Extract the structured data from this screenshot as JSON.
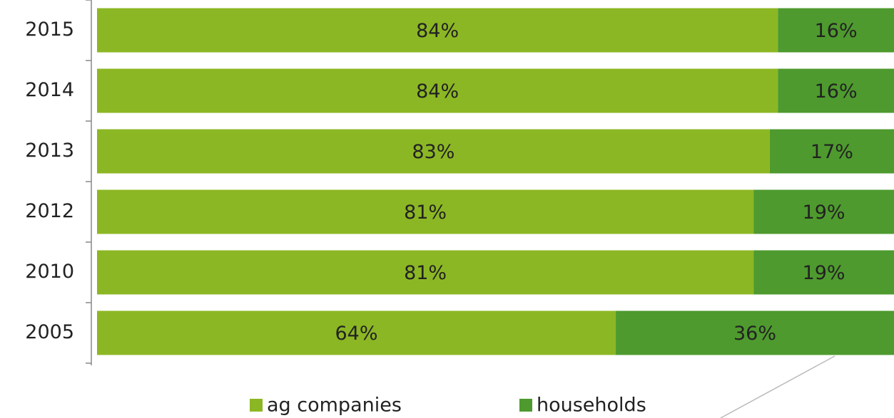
{
  "chart_data": {
    "type": "bar",
    "orientation": "horizontal",
    "stacked": true,
    "categories": [
      "2015",
      "2014",
      "2013",
      "2012",
      "2010",
      "2005"
    ],
    "xlim": [
      0,
      100
    ],
    "series": [
      {
        "name": "ag companies",
        "color": "#8cb724",
        "values": [
          84,
          84,
          83,
          81,
          81,
          64
        ],
        "value_labels": [
          "84%",
          "84%",
          "83%",
          "81%",
          "81%",
          "64%"
        ]
      },
      {
        "name": "households",
        "color": "#4e9a2e",
        "values": [
          16,
          16,
          17,
          19,
          19,
          36
        ],
        "value_labels": [
          "16%",
          "16%",
          "17%",
          "19%",
          "19%",
          "36%"
        ]
      }
    ],
    "legend": "bottom"
  }
}
